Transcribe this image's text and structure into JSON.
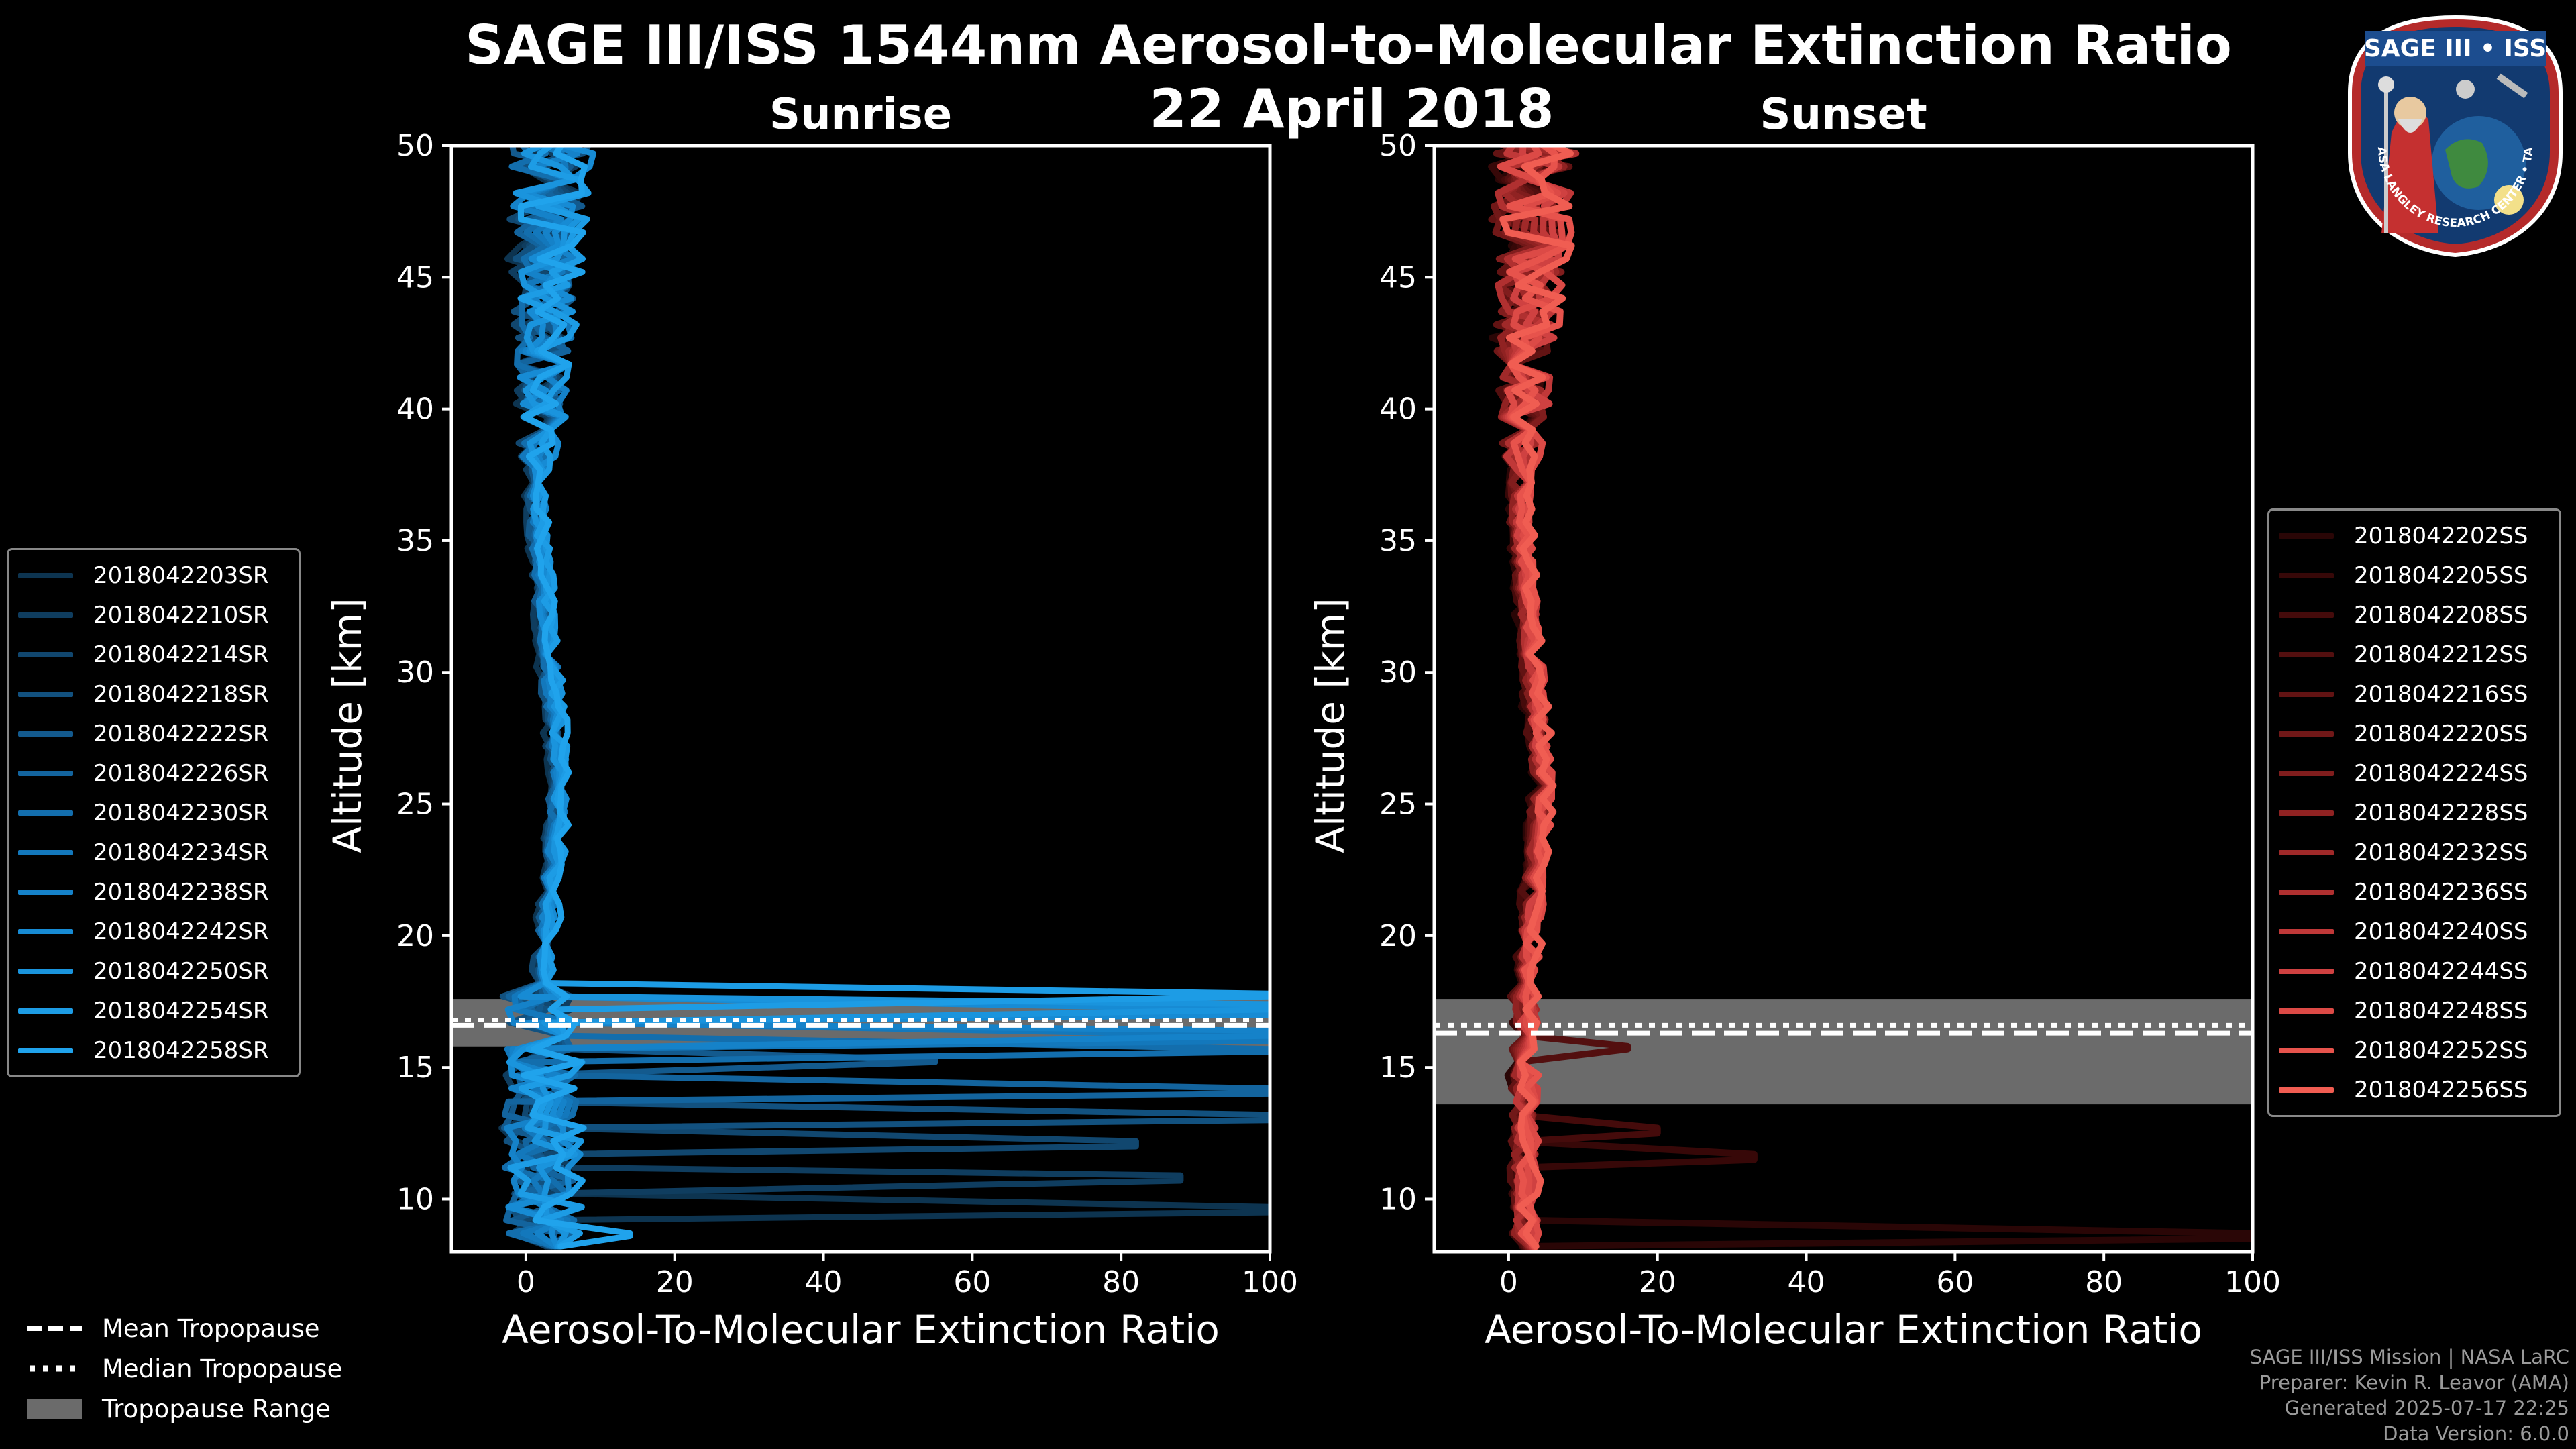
{
  "figure": {
    "title": "SAGE III/ISS 1544nm Aerosol-to-Molecular Extinction Ratio",
    "date": "22 April 2018"
  },
  "badge": {
    "title": "SAGE III • ISS",
    "ring_text": "BALL • NASA LANGLEY RESEARCH CENTER • TAS-I • ESA"
  },
  "credits": {
    "line1": "SAGE III/ISS Mission | NASA LaRC",
    "line2": "Preparer: Kevin R. Leavor (AMA)",
    "line3": "Generated 2025-07-17 22:25",
    "line4": "Data Version: 6.0.0"
  },
  "bottom_legend": {
    "mean": "Mean Tropopause",
    "median": "Median Tropopause",
    "range": "Tropopause Range"
  },
  "chart_data": [
    {
      "type": "line",
      "title": "Sunrise",
      "xlabel": "Aerosol-To-Molecular Extinction Ratio",
      "ylabel": "Altitude [km]",
      "xlim": [
        -10,
        100
      ],
      "ylim": [
        8,
        50
      ],
      "xticks": [
        0,
        20,
        40,
        60,
        80,
        100
      ],
      "yticks": [
        10,
        15,
        20,
        25,
        30,
        35,
        40,
        45,
        50
      ],
      "grid": false,
      "legend_position": "left",
      "tropopause": {
        "mean": 16.6,
        "median": 16.8,
        "range": [
          15.8,
          17.6
        ]
      },
      "series": [
        {
          "name": "2018042203SR",
          "color": "#0d3450",
          "spike": {
            "alt": 9.5,
            "x": 100
          }
        },
        {
          "name": "2018042210SR",
          "color": "#0f3d5f",
          "spike": {
            "alt": 10.9,
            "x": 88
          }
        },
        {
          "name": "2018042214SR",
          "color": "#11476f",
          "spike": {
            "alt": 12.0,
            "x": 82
          }
        },
        {
          "name": "2018042218SR",
          "color": "#12517f",
          "spike": {
            "alt": 13.0,
            "x": 100
          }
        },
        {
          "name": "2018042222SR",
          "color": "#135a8e",
          "spike": {
            "alt": 15.3,
            "x": 55
          }
        },
        {
          "name": "2018042226SR",
          "color": "#13649e",
          "spike": {
            "alt": 14.0,
            "x": 100
          }
        },
        {
          "name": "2018042230SR",
          "color": "#136ead",
          "spike": {
            "alt": 15.6,
            "x": 100
          }
        },
        {
          "name": "2018042234SR",
          "color": "#1378bc",
          "spike": {
            "alt": 16.0,
            "x": 100
          }
        },
        {
          "name": "2018042238SR",
          "color": "#1582c9",
          "spike": {
            "alt": 16.4,
            "x": 100
          }
        },
        {
          "name": "2018042242SR",
          "color": "#178bd4",
          "spike": {
            "alt": 17.0,
            "x": 100
          }
        },
        {
          "name": "2018042250SR",
          "color": "#1a94dd",
          "spike": {
            "alt": 17.4,
            "x": 100
          }
        },
        {
          "name": "2018042254SR",
          "color": "#1d9ce5",
          "spike": {
            "alt": 17.8,
            "x": 100
          }
        },
        {
          "name": "2018042258SR",
          "color": "#20a3ec",
          "spike": {
            "alt": 8.6,
            "x": 14
          }
        }
      ]
    },
    {
      "type": "line",
      "title": "Sunset",
      "xlabel": "Aerosol-To-Molecular Extinction Ratio",
      "ylabel": "Altitude [km]",
      "xlim": [
        -10,
        100
      ],
      "ylim": [
        8,
        50
      ],
      "xticks": [
        0,
        20,
        40,
        60,
        80,
        100
      ],
      "yticks": [
        10,
        15,
        20,
        25,
        30,
        35,
        40,
        45,
        50
      ],
      "grid": false,
      "legend_position": "right",
      "tropopause": {
        "mean": 16.3,
        "median": 16.6,
        "range": [
          13.6,
          17.6
        ]
      },
      "series": [
        {
          "name": "2018042202SS",
          "color": "#2a0606",
          "spike": {
            "alt": 8.5,
            "x": 100
          }
        },
        {
          "name": "2018042205SS",
          "color": "#370808",
          "spike": {
            "alt": 11.5,
            "x": 33
          }
        },
        {
          "name": "2018042208SS",
          "color": "#450b0b",
          "spike": {
            "alt": 12.5,
            "x": 20
          }
        },
        {
          "name": "2018042212SS",
          "color": "#530f0f",
          "spike": {
            "alt": 15.8,
            "x": 16
          }
        },
        {
          "name": "2018042216SS",
          "color": "#621313",
          "spike": null
        },
        {
          "name": "2018042220SS",
          "color": "#711818",
          "spike": null
        },
        {
          "name": "2018042224SS",
          "color": "#801d1d",
          "spike": null
        },
        {
          "name": "2018042228SS",
          "color": "#902222",
          "spike": null
        },
        {
          "name": "2018042232SS",
          "color": "#a02929",
          "spike": null
        },
        {
          "name": "2018042236SS",
          "color": "#b03030",
          "spike": null
        },
        {
          "name": "2018042240SS",
          "color": "#c03838",
          "spike": null
        },
        {
          "name": "2018042244SS",
          "color": "#cf4141",
          "spike": null
        },
        {
          "name": "2018042248SS",
          "color": "#dc4a46",
          "spike": null
        },
        {
          "name": "2018042252SS",
          "color": "#e7534c",
          "spike": null
        },
        {
          "name": "2018042256SS",
          "color": "#f05d52",
          "spike": null
        }
      ]
    }
  ]
}
